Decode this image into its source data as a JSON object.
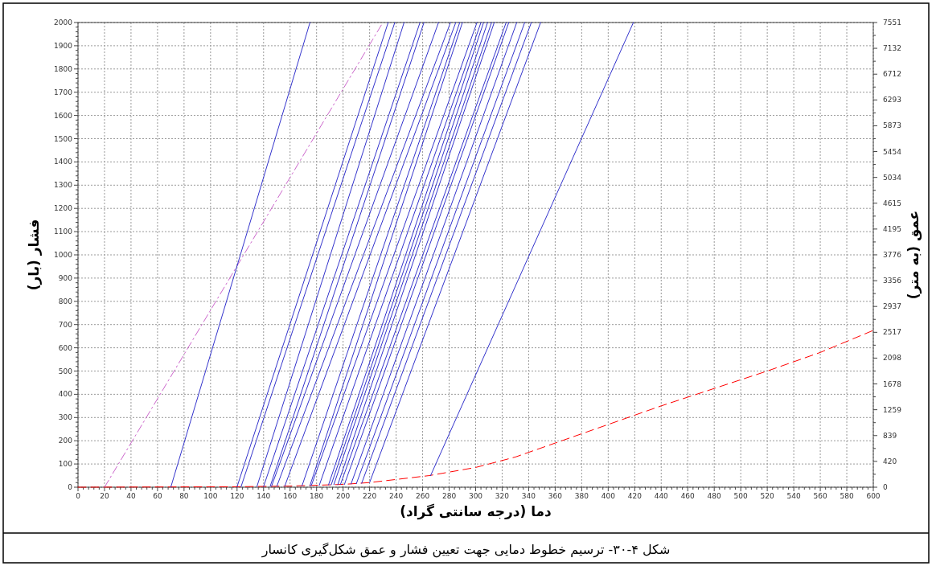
{
  "chart_data": {
    "type": "line",
    "xlabel": "دما (درجه سانتی گراد)",
    "ylabel": "فشار (بار)",
    "y2label": "عمق (به متر)",
    "annotations": [
      "شکل ۴-۳۰- ترسیم خطوط دمایی جهت تعیین فشار و عمق شکل‌گیری کانسار"
    ],
    "xlim": [
      0,
      600
    ],
    "ylim": [
      0,
      2000
    ],
    "y2lim": [
      0,
      7551
    ],
    "xticks": [
      0,
      20,
      40,
      60,
      80,
      100,
      120,
      140,
      160,
      180,
      200,
      220,
      240,
      260,
      280,
      300,
      320,
      340,
      360,
      380,
      400,
      420,
      440,
      460,
      480,
      500,
      520,
      540,
      560,
      580,
      600
    ],
    "yticks": [
      0,
      100,
      200,
      300,
      400,
      500,
      600,
      700,
      800,
      900,
      1000,
      1100,
      1200,
      1300,
      1400,
      1500,
      1600,
      1700,
      1800,
      1900,
      2000
    ],
    "y2ticks": [
      0,
      420,
      839,
      1259,
      1678,
      2098,
      2517,
      2937,
      3356,
      3776,
      4195,
      4615,
      5034,
      5454,
      5873,
      6293,
      6712,
      7132,
      7551
    ],
    "grid": true,
    "marker": "none",
    "line_style": "solid",
    "series": [
      {
        "color": "#ff0000",
        "line_style": "dashed",
        "x": [
          0,
          120,
          160,
          200,
          220,
          265,
          300,
          330,
          360,
          400,
          440,
          480,
          520,
          560,
          600
        ],
        "values": [
          0,
          2,
          5,
          12,
          20,
          50,
          85,
          130,
          190,
          270,
          350,
          425,
          500,
          580,
          675
        ]
      },
      {
        "color": "#cc66cc",
        "line_style": "dashdot",
        "x": [
          20,
          230
        ],
        "values": [
          0,
          2000
        ]
      },
      {
        "color": "#3333cc",
        "x": [
          70,
          175
        ],
        "values": [
          0,
          2000
        ]
      },
      {
        "color": "#3333cc",
        "x": [
          120,
          234
        ],
        "values": [
          2,
          2000
        ]
      },
      {
        "color": "#3333cc",
        "x": [
          123,
          239
        ],
        "values": [
          2,
          2000
        ]
      },
      {
        "color": "#3333cc",
        "x": [
          135,
          246
        ],
        "values": [
          3,
          2000
        ]
      },
      {
        "color": "#3333cc",
        "x": [
          140,
          258
        ],
        "values": [
          3,
          2000
        ]
      },
      {
        "color": "#3333cc",
        "x": [
          145,
          261
        ],
        "values": [
          4,
          2000
        ]
      },
      {
        "color": "#3333cc",
        "x": [
          146,
          272
        ],
        "values": [
          4,
          2000
        ]
      },
      {
        "color": "#3333cc",
        "x": [
          150,
          281
        ],
        "values": [
          4,
          2000
        ]
      },
      {
        "color": "#3333cc",
        "x": [
          156,
          285
        ],
        "values": [
          5,
          2000
        ]
      },
      {
        "color": "#3333cc",
        "x": [
          169,
          288
        ],
        "values": [
          6,
          2000
        ]
      },
      {
        "color": "#3333cc",
        "x": [
          175,
          290
        ],
        "values": [
          7,
          2000
        ]
      },
      {
        "color": "#3333cc",
        "x": [
          176,
          301
        ],
        "values": [
          7,
          2000
        ]
      },
      {
        "color": "#3333cc",
        "x": [
          182,
          304
        ],
        "values": [
          8,
          2000
        ]
      },
      {
        "color": "#3333cc",
        "x": [
          189,
          306
        ],
        "values": [
          10,
          2000
        ]
      },
      {
        "color": "#3333cc",
        "x": [
          191,
          309
        ],
        "values": [
          10,
          2000
        ]
      },
      {
        "color": "#3333cc",
        "x": [
          193,
          312
        ],
        "values": [
          11,
          2000
        ]
      },
      {
        "color": "#3333cc",
        "x": [
          196,
          314
        ],
        "values": [
          11,
          2000
        ]
      },
      {
        "color": "#3333cc",
        "x": [
          198,
          323
        ],
        "values": [
          12,
          2000
        ]
      },
      {
        "color": "#3333cc",
        "x": [
          201,
          325
        ],
        "values": [
          12,
          2000
        ]
      },
      {
        "color": "#3333cc",
        "x": [
          206,
          331
        ],
        "values": [
          14,
          2000
        ]
      },
      {
        "color": "#3333cc",
        "x": [
          210,
          337
        ],
        "values": [
          15,
          2000
        ]
      },
      {
        "color": "#3333cc",
        "x": [
          214,
          342
        ],
        "values": [
          17,
          2000
        ]
      },
      {
        "color": "#3333cc",
        "x": [
          220,
          349
        ],
        "values": [
          20,
          2000
        ]
      },
      {
        "color": "#3333cc",
        "x": [
          266,
          419
        ],
        "values": [
          50,
          2000
        ]
      }
    ]
  }
}
